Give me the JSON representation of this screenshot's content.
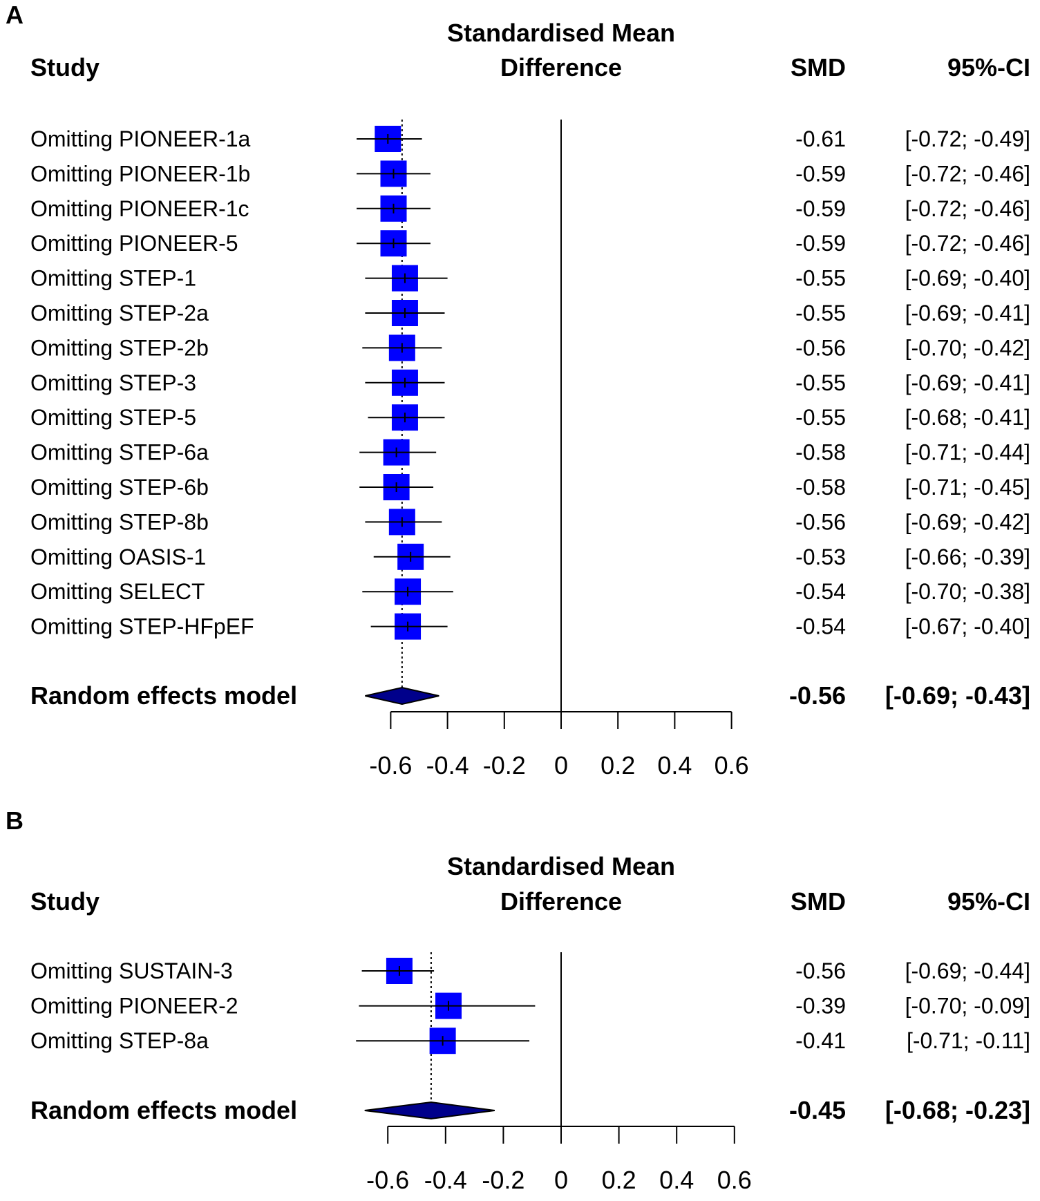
{
  "colors": {
    "square": "#0000ff",
    "diamond": "#00008b",
    "line": "#000000"
  },
  "chart_data": [
    {
      "type": "forest",
      "panel_label": "A",
      "title_line1": "Standardised Mean",
      "title_line2": "Difference",
      "study_header": "Study",
      "smd_header": "SMD",
      "ci_header": "95%-CI",
      "xlim": [
        -0.6,
        0.6
      ],
      "ticks": [
        -0.6,
        -0.4,
        -0.2,
        0,
        0.2,
        0.4,
        0.6
      ],
      "tick_labels": [
        "-0.6",
        "-0.4",
        "-0.2",
        "0",
        "0.2",
        "0.4",
        "0.6"
      ],
      "studies": [
        {
          "name": "Omitting PIONEER-1a",
          "smd": -0.61,
          "lower": -0.72,
          "upper": -0.49,
          "smd_text": "-0.61",
          "ci_text": "[-0.72; -0.49]"
        },
        {
          "name": "Omitting PIONEER-1b",
          "smd": -0.59,
          "lower": -0.72,
          "upper": -0.46,
          "smd_text": "-0.59",
          "ci_text": "[-0.72; -0.46]"
        },
        {
          "name": "Omitting PIONEER-1c",
          "smd": -0.59,
          "lower": -0.72,
          "upper": -0.46,
          "smd_text": "-0.59",
          "ci_text": "[-0.72; -0.46]"
        },
        {
          "name": "Omitting PIONEER-5",
          "smd": -0.59,
          "lower": -0.72,
          "upper": -0.46,
          "smd_text": "-0.59",
          "ci_text": "[-0.72; -0.46]"
        },
        {
          "name": "Omitting STEP-1",
          "smd": -0.55,
          "lower": -0.69,
          "upper": -0.4,
          "smd_text": "-0.55",
          "ci_text": "[-0.69; -0.40]"
        },
        {
          "name": "Omitting STEP-2a",
          "smd": -0.55,
          "lower": -0.69,
          "upper": -0.41,
          "smd_text": "-0.55",
          "ci_text": "[-0.69; -0.41]"
        },
        {
          "name": "Omitting STEP-2b",
          "smd": -0.56,
          "lower": -0.7,
          "upper": -0.42,
          "smd_text": "-0.56",
          "ci_text": "[-0.70; -0.42]"
        },
        {
          "name": "Omitting STEP-3",
          "smd": -0.55,
          "lower": -0.69,
          "upper": -0.41,
          "smd_text": "-0.55",
          "ci_text": "[-0.69; -0.41]"
        },
        {
          "name": "Omitting STEP-5",
          "smd": -0.55,
          "lower": -0.68,
          "upper": -0.41,
          "smd_text": "-0.55",
          "ci_text": "[-0.68; -0.41]"
        },
        {
          "name": "Omitting STEP-6a",
          "smd": -0.58,
          "lower": -0.71,
          "upper": -0.44,
          "smd_text": "-0.58",
          "ci_text": "[-0.71; -0.44]"
        },
        {
          "name": "Omitting STEP-6b",
          "smd": -0.58,
          "lower": -0.71,
          "upper": -0.45,
          "smd_text": "-0.58",
          "ci_text": "[-0.71; -0.45]"
        },
        {
          "name": "Omitting STEP-8b",
          "smd": -0.56,
          "lower": -0.69,
          "upper": -0.42,
          "smd_text": "-0.56",
          "ci_text": "[-0.69; -0.42]"
        },
        {
          "name": "Omitting OASIS-1",
          "smd": -0.53,
          "lower": -0.66,
          "upper": -0.39,
          "smd_text": "-0.53",
          "ci_text": "[-0.66; -0.39]"
        },
        {
          "name": "Omitting SELECT",
          "smd": -0.54,
          "lower": -0.7,
          "upper": -0.38,
          "smd_text": "-0.54",
          "ci_text": "[-0.70; -0.38]"
        },
        {
          "name": "Omitting STEP-HFpEF",
          "smd": -0.54,
          "lower": -0.67,
          "upper": -0.4,
          "smd_text": "-0.54",
          "ci_text": "[-0.67; -0.40]"
        }
      ],
      "pooled": {
        "name": "Random effects model",
        "smd": -0.56,
        "lower": -0.69,
        "upper": -0.43,
        "smd_text": "-0.56",
        "ci_text": "[-0.69; -0.43]"
      }
    },
    {
      "type": "forest",
      "panel_label": "B",
      "title_line1": "Standardised Mean",
      "title_line2": "Difference",
      "study_header": "Study",
      "smd_header": "SMD",
      "ci_header": "95%-CI",
      "xlim": [
        -0.6,
        0.6
      ],
      "ticks": [
        -0.6,
        -0.4,
        -0.2,
        0,
        0.2,
        0.4,
        0.6
      ],
      "tick_labels": [
        "-0.6",
        "-0.4",
        "-0.2",
        "0",
        "0.2",
        "0.4",
        "0.6"
      ],
      "studies": [
        {
          "name": "Omitting SUSTAIN-3",
          "smd": -0.56,
          "lower": -0.69,
          "upper": -0.44,
          "smd_text": "-0.56",
          "ci_text": "[-0.69; -0.44]"
        },
        {
          "name": "Omitting PIONEER-2",
          "smd": -0.39,
          "lower": -0.7,
          "upper": -0.09,
          "smd_text": "-0.39",
          "ci_text": "[-0.70; -0.09]"
        },
        {
          "name": "Omitting STEP-8a",
          "smd": -0.41,
          "lower": -0.71,
          "upper": -0.11,
          "smd_text": "-0.41",
          "ci_text": "[-0.71; -0.11]"
        }
      ],
      "pooled": {
        "name": "Random effects model",
        "smd": -0.45,
        "lower": -0.68,
        "upper": -0.23,
        "smd_text": "-0.45",
        "ci_text": "[-0.68; -0.23]"
      }
    }
  ]
}
